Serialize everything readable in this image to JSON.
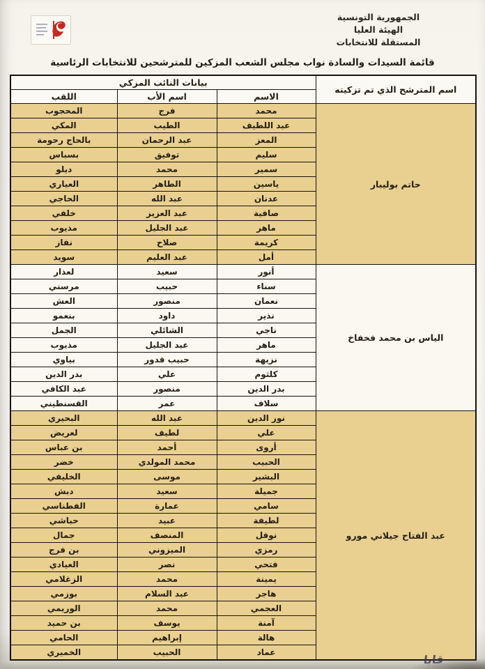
{
  "page": {
    "header": {
      "org_lines": [
        "الجمهورية التونسية",
        "الهيئة العليا",
        "المستقلة للانتخابات"
      ],
      "logo_icon": "tunisia-flag-ribbon-icon"
    },
    "title": "قائمة السيدات والسادة نواب مجلس الشعب المزكين للمترشحين للانتخابات الرئاسية",
    "signature_mark": "قابا"
  },
  "table": {
    "candidate_col_header": "اسم المترشح الذي تم تزكيته",
    "deputy_group_header": "بيانات النائب المزكي",
    "sub_headers": [
      "الاسم",
      "اسم الأب",
      "اللقب"
    ],
    "colors": {
      "shaded_row": "#e9cf90",
      "border": "#17130e"
    },
    "groups": [
      {
        "candidate": "حاتم بوليبار",
        "shaded": true,
        "rows": [
          [
            "محمد",
            "فرج",
            "المحجوب"
          ],
          [
            "عبد اللطيف",
            "الطيب",
            "المكي"
          ],
          [
            "المعز",
            "عبد الرحمان",
            "بالحاج رحومة"
          ],
          [
            "سليم",
            "توفيق",
            "بسباس"
          ],
          [
            "سمير",
            "محمد",
            "ديلو"
          ],
          [
            "ياسين",
            "الطاهر",
            "العياري"
          ],
          [
            "عدنان",
            "عبد الله",
            "الحاجي"
          ],
          [
            "صافية",
            "عبد العزيز",
            "خلفي"
          ],
          [
            "ماهر",
            "عبد الجليل",
            "مذيوب"
          ],
          [
            "كريمة",
            "صلاح",
            "نفاز"
          ],
          [
            "أمل",
            "عبد العليم",
            "سويد"
          ]
        ]
      },
      {
        "candidate": "الياس بن محمد فخفاخ",
        "shaded": false,
        "rows": [
          [
            "أنور",
            "سعيد",
            "لعذار"
          ],
          [
            "سناء",
            "حبيب",
            "مرسني"
          ],
          [
            "نعمان",
            "منصور",
            "العش"
          ],
          [
            "نذير",
            "داود",
            "بنعمو"
          ],
          [
            "ناجي",
            "الشائلي",
            "الجمل"
          ],
          [
            "ماهر",
            "عبد الجليل",
            "مذيوب"
          ],
          [
            "نزيهة",
            "حبيب قدور",
            "بياوي"
          ],
          [
            "كلثوم",
            "علي",
            "بدر الدين"
          ],
          [
            "بدر الدين",
            "منصور",
            "عبد الكافي"
          ],
          [
            "سلاف",
            "عمر",
            "القسنطيني"
          ]
        ]
      },
      {
        "candidate": "عبد الفتاح جيلاني مورو",
        "shaded": true,
        "rows": [
          [
            "نور الدين",
            "عبد الله",
            "البحيري"
          ],
          [
            "علي",
            "لطيف",
            "لعريض"
          ],
          [
            "أروى",
            "أحمد",
            "بن عباس"
          ],
          [
            "الحبيب",
            "محمد المولدي",
            "خضر"
          ],
          [
            "البشير",
            "موسى",
            "الخليفي"
          ],
          [
            "جميلة",
            "سعيد",
            "دبش"
          ],
          [
            "سامي",
            "عمارة",
            "الفطناسي"
          ],
          [
            "لطيفة",
            "عبيد",
            "حباشي"
          ],
          [
            "نوفل",
            "المنصف",
            "جمال"
          ],
          [
            "رمزي",
            "الميزوني",
            "بن فرج"
          ],
          [
            "فتحي",
            "نصر",
            "العيادي"
          ],
          [
            "يمينة",
            "محمد",
            "الزغلامي"
          ],
          [
            "هاجر",
            "عبد السلام",
            "بوزمي"
          ],
          [
            "العجمي",
            "محمد",
            "الوريمي"
          ],
          [
            "آمنة",
            "يوسف",
            "بن حميد"
          ],
          [
            "هالة",
            "إبراهيم",
            "الحامي"
          ],
          [
            "عماد",
            "الحبيب",
            "الخميري"
          ]
        ]
      }
    ]
  }
}
